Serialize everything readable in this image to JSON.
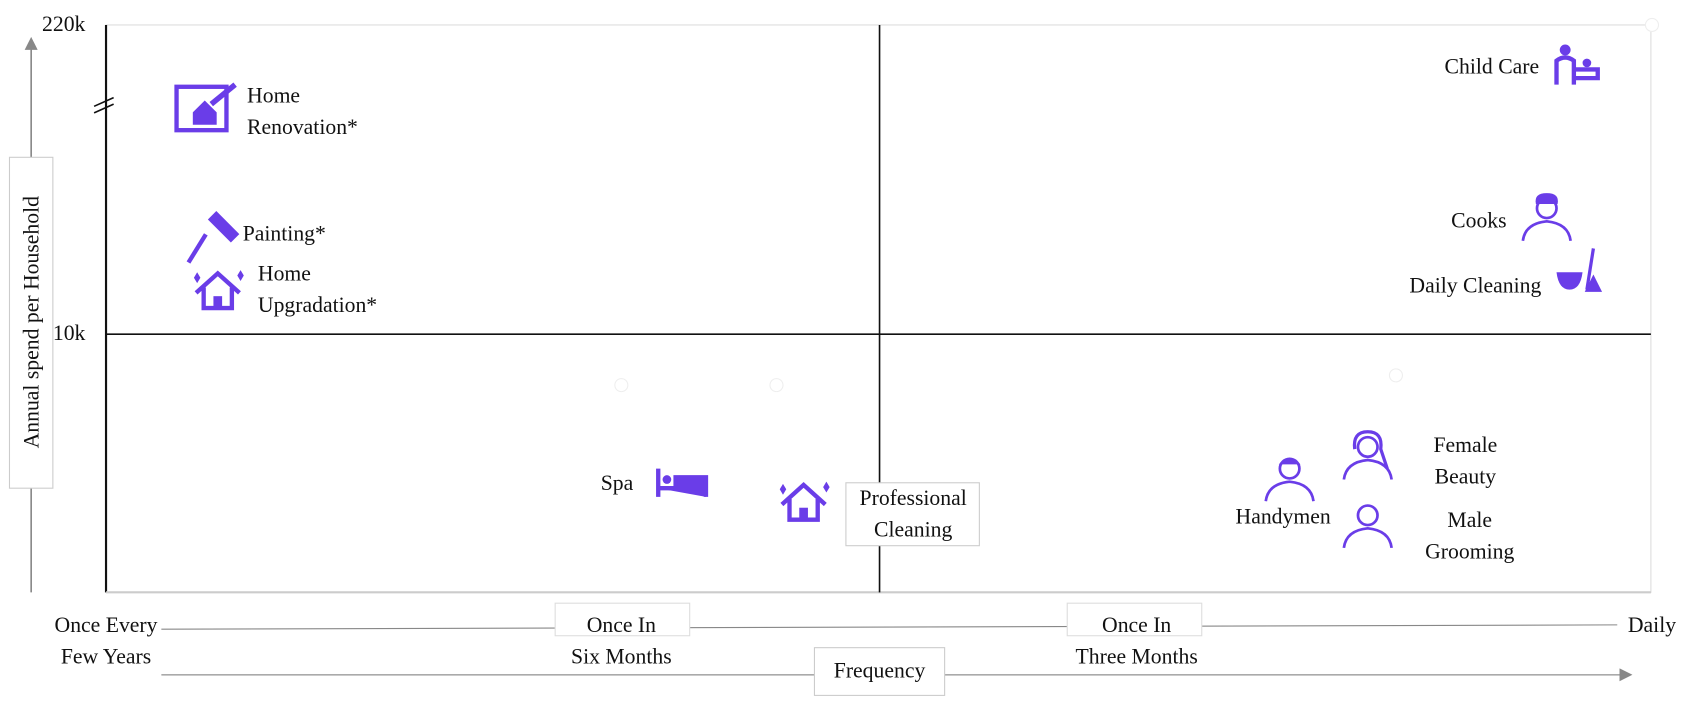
{
  "y_axis": {
    "label": "Annual spend per Household",
    "ticks": [
      "220k",
      "10k"
    ]
  },
  "x_axis": {
    "label": "Frequency",
    "ticks": [
      [
        "Once Every",
        "Few Years"
      ],
      [
        "Once In",
        "Six Months"
      ],
      [
        "Once In",
        "Three Months"
      ],
      [
        "Daily"
      ]
    ]
  },
  "items": [
    {
      "label": [
        "Home",
        "Renovation*"
      ]
    },
    {
      "label": [
        "Painting*"
      ]
    },
    {
      "label": [
        "Home",
        "Upgradation*"
      ]
    },
    {
      "label": [
        "Child Care"
      ]
    },
    {
      "label": [
        "Cooks"
      ]
    },
    {
      "label": [
        "Daily Cleaning"
      ]
    },
    {
      "label": [
        "Spa"
      ]
    },
    {
      "label": [
        "Professional",
        "Cleaning"
      ]
    },
    {
      "label": [
        "Handymen"
      ]
    },
    {
      "label": [
        "Female",
        "Beauty"
      ]
    },
    {
      "label": [
        "Male",
        "Grooming"
      ]
    }
  ]
}
